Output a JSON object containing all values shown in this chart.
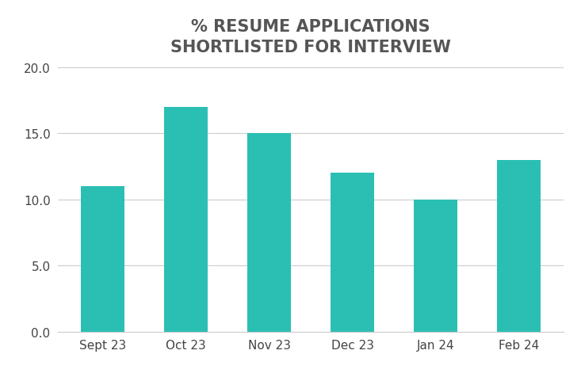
{
  "title": "% RESUME APPLICATIONS\nSHORTLISTED FOR INTERVIEW",
  "categories": [
    "Sept 23",
    "Oct 23",
    "Nov 23",
    "Dec 23",
    "Jan 24",
    "Feb 24"
  ],
  "values": [
    11.0,
    17.0,
    15.0,
    12.0,
    10.0,
    13.0
  ],
  "bar_color": "#2BBFB3",
  "background_color": "#ffffff",
  "ylim": [
    0,
    20.0
  ],
  "yticks": [
    0.0,
    5.0,
    10.0,
    15.0,
    20.0
  ],
  "title_fontsize": 15,
  "tick_fontsize": 11,
  "bar_width": 0.52,
  "grid_color": "#cccccc",
  "title_color": "#555555",
  "tick_color": "#444444",
  "title_fontweight": "bold"
}
